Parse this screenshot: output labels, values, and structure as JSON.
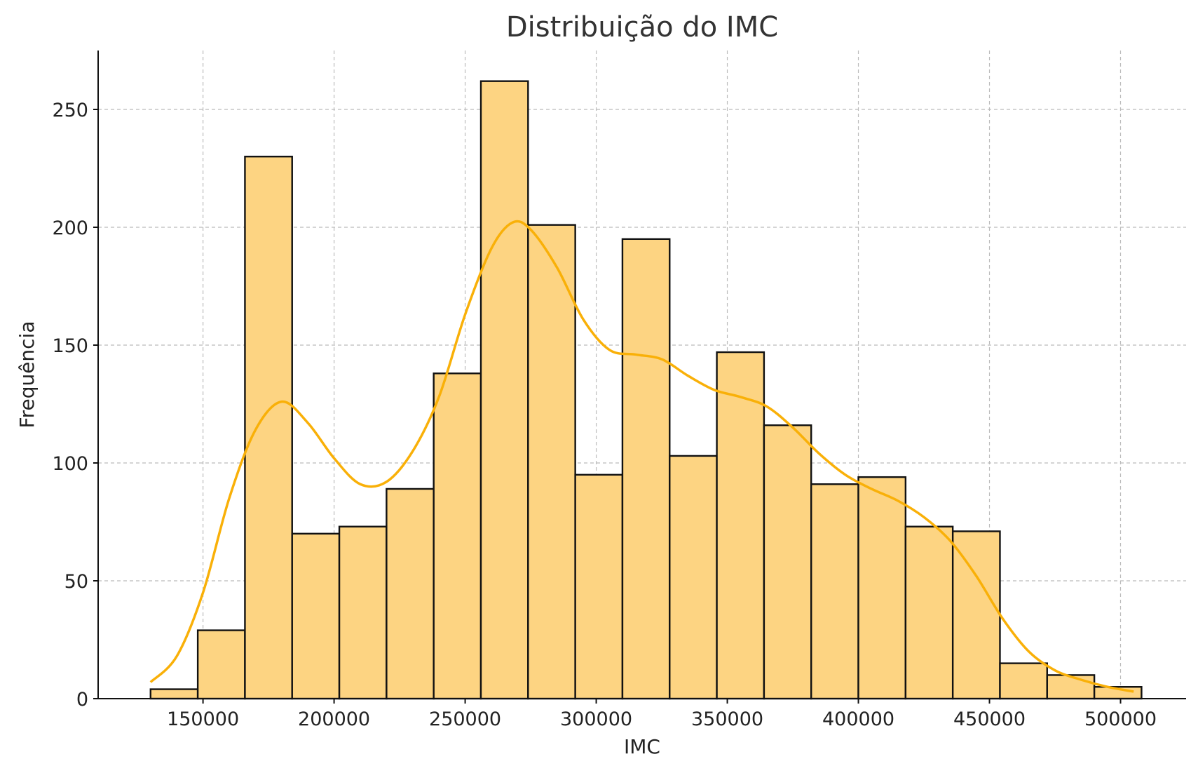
{
  "chart_data": {
    "type": "bar",
    "title": "Distribuição do IMC",
    "xlabel": "IMC",
    "ylabel": "Frequência",
    "xlim": [
      110000,
      525000
    ],
    "ylim": [
      0,
      275
    ],
    "x_ticks": [
      150000,
      200000,
      250000,
      300000,
      350000,
      400000,
      450000,
      500000
    ],
    "y_ticks": [
      0,
      50,
      100,
      150,
      200,
      250
    ],
    "grid": true,
    "bar_color": "#fdd482",
    "kde_color": "#f9b008",
    "bins": [
      {
        "start": 130000,
        "end": 148000,
        "count": 4
      },
      {
        "start": 148000,
        "end": 166000,
        "count": 29
      },
      {
        "start": 166000,
        "end": 184000,
        "count": 230
      },
      {
        "start": 184000,
        "end": 202000,
        "count": 70
      },
      {
        "start": 202000,
        "end": 220000,
        "count": 73
      },
      {
        "start": 220000,
        "end": 238000,
        "count": 89
      },
      {
        "start": 238000,
        "end": 256000,
        "count": 138
      },
      {
        "start": 256000,
        "end": 274000,
        "count": 262
      },
      {
        "start": 274000,
        "end": 292000,
        "count": 201
      },
      {
        "start": 292000,
        "end": 310000,
        "count": 95
      },
      {
        "start": 310000,
        "end": 328000,
        "count": 195
      },
      {
        "start": 328000,
        "end": 346000,
        "count": 103
      },
      {
        "start": 346000,
        "end": 364000,
        "count": 147
      },
      {
        "start": 364000,
        "end": 382000,
        "count": 116
      },
      {
        "start": 382000,
        "end": 400000,
        "count": 91
      },
      {
        "start": 400000,
        "end": 418000,
        "count": 94
      },
      {
        "start": 418000,
        "end": 436000,
        "count": 73
      },
      {
        "start": 436000,
        "end": 454000,
        "count": 71
      },
      {
        "start": 454000,
        "end": 472000,
        "count": 15
      },
      {
        "start": 472000,
        "end": 490000,
        "count": 10
      },
      {
        "start": 490000,
        "end": 508000,
        "count": 5
      }
    ],
    "kde": [
      [
        130000,
        7
      ],
      [
        140000,
        18
      ],
      [
        150000,
        45
      ],
      [
        160000,
        85
      ],
      [
        170000,
        114
      ],
      [
        180000,
        126
      ],
      [
        190000,
        117
      ],
      [
        200000,
        102
      ],
      [
        210000,
        91
      ],
      [
        220000,
        92
      ],
      [
        230000,
        105
      ],
      [
        240000,
        128
      ],
      [
        250000,
        163
      ],
      [
        260000,
        191
      ],
      [
        268000,
        202
      ],
      [
        275000,
        199
      ],
      [
        285000,
        183
      ],
      [
        295000,
        161
      ],
      [
        305000,
        148
      ],
      [
        315000,
        146
      ],
      [
        325000,
        144
      ],
      [
        335000,
        137
      ],
      [
        345000,
        131
      ],
      [
        355000,
        128
      ],
      [
        365000,
        124
      ],
      [
        375000,
        115
      ],
      [
        385000,
        104
      ],
      [
        395000,
        95
      ],
      [
        405000,
        89
      ],
      [
        415000,
        84
      ],
      [
        425000,
        77
      ],
      [
        435000,
        67
      ],
      [
        445000,
        52
      ],
      [
        455000,
        34
      ],
      [
        465000,
        20
      ],
      [
        475000,
        12
      ],
      [
        485000,
        8
      ],
      [
        495000,
        5
      ],
      [
        505000,
        3
      ]
    ]
  }
}
